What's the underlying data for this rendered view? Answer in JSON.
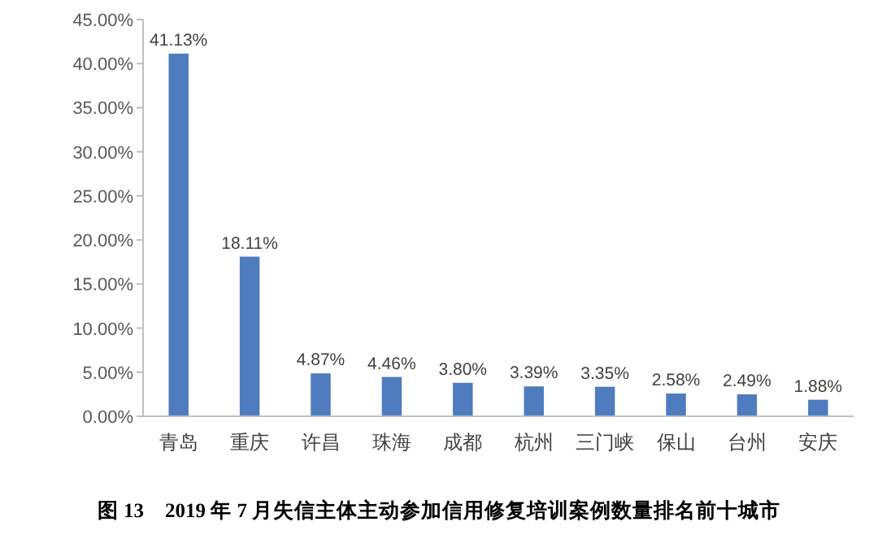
{
  "chart_data": {
    "type": "bar",
    "title": "图 13　2019 年 7 月失信主体主动参加信用修复培训案例数量排名前十城市",
    "categories": [
      "青岛",
      "重庆",
      "许昌",
      "珠海",
      "成都",
      "杭州",
      "三门峡",
      "保山",
      "台州",
      "安庆"
    ],
    "values": [
      41.13,
      18.11,
      4.87,
      4.46,
      3.8,
      3.39,
      3.35,
      2.58,
      2.49,
      1.88
    ],
    "value_labels": [
      "41.13%",
      "18.11%",
      "4.87%",
      "4.46%",
      "3.80%",
      "3.39%",
      "3.35%",
      "2.58%",
      "2.49%",
      "1.88%"
    ],
    "color": "#4f7cbf",
    "ylim": [
      0,
      45
    ],
    "yticks": [
      {
        "value": 0,
        "label": "0.00%"
      },
      {
        "value": 5,
        "label": "5.00%"
      },
      {
        "value": 10,
        "label": "10.00%"
      },
      {
        "value": 15,
        "label": "15.00%"
      },
      {
        "value": 20,
        "label": "20.00%"
      },
      {
        "value": 25,
        "label": "25.00%"
      },
      {
        "value": 30,
        "label": "30.00%"
      },
      {
        "value": 35,
        "label": "35.00%"
      },
      {
        "value": 40,
        "label": "40.00%"
      },
      {
        "value": 45,
        "label": "45.00%"
      }
    ]
  }
}
